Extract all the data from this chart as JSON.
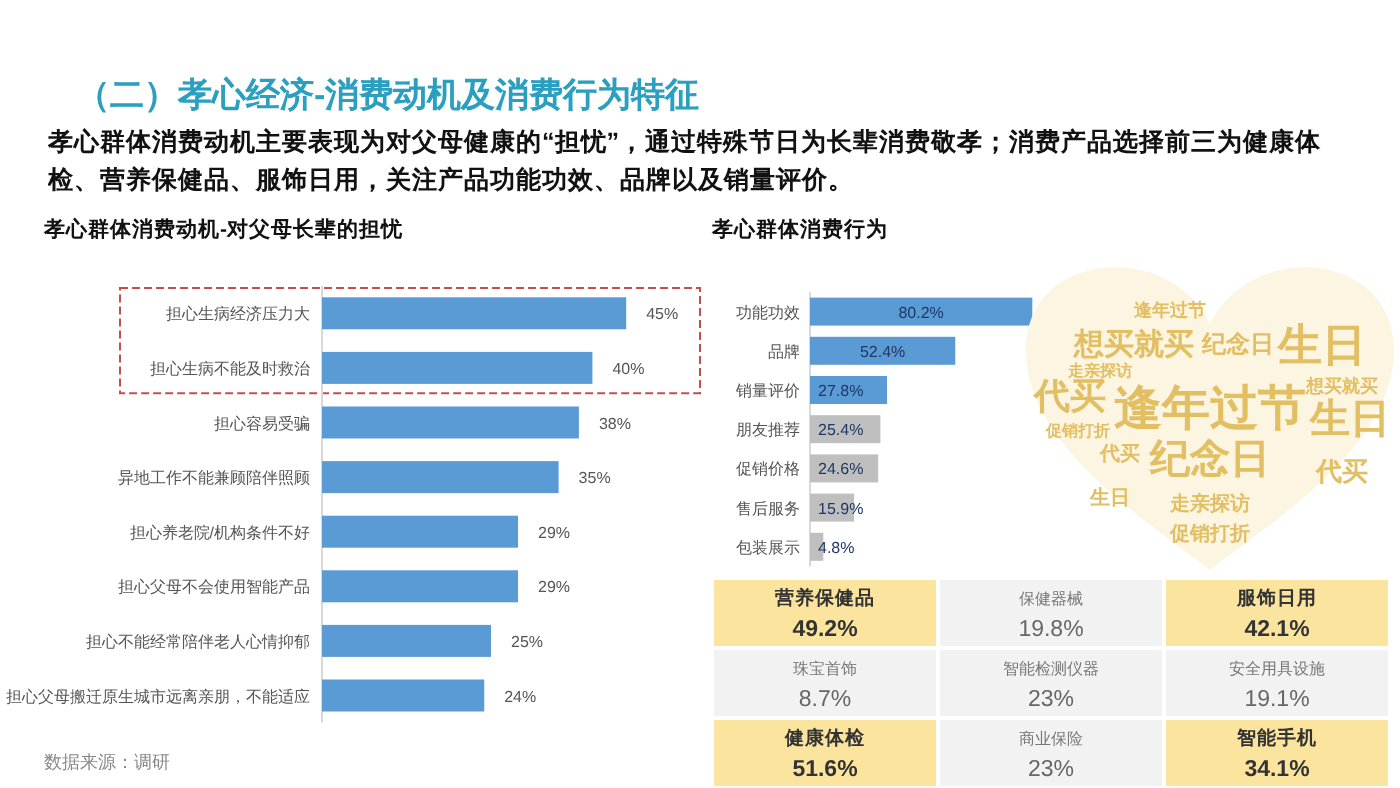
{
  "chart_data": [
    {
      "type": "other",
      "title": "（二）孝心经济-消费动机及消费行为特征",
      "subtitle": "孝心群体消费动机主要表现为对父母健康的“担忧”，通过特殊节日为长辈消费敬孝；消费产品选择前三为健康体检、营养保健品、服饰日用，关注产品功能功效、品牌以及销量评价。"
    },
    {
      "type": "bar",
      "orientation": "horizontal",
      "title": "孝心群体消费动机-对父母长辈的担忧",
      "categories": [
        "担心生病经济压力大",
        "担心生病不能及时救治",
        "担心容易受骗",
        "异地工作不能兼顾陪伴照顾",
        "担心养老院/机构条件不好",
        "担心父母不会使用智能产品",
        "担心不能经常陪伴老人心情抑郁",
        "担心父母搬迁原生城市远离亲朋，不能适应"
      ],
      "values": [
        45,
        40,
        38,
        35,
        29,
        29,
        25,
        24
      ],
      "value_labels": [
        "45%",
        "40%",
        "38%",
        "35%",
        "29%",
        "29%",
        "25%",
        "24%"
      ],
      "color": "#5b9bd5",
      "annotations": [
        "数据来源：调研"
      ]
    },
    {
      "type": "bar",
      "orientation": "horizontal",
      "title": "孝心群体消费行为",
      "categories": [
        "功能功效",
        "品牌",
        "销量评价",
        "朋友推荐",
        "促销价格",
        "售后服务",
        "包装展示"
      ],
      "values": [
        80.2,
        52.4,
        27.8,
        25.4,
        24.6,
        15.9,
        4.8
      ],
      "value_labels": [
        "80.2%",
        "52.4%",
        "27.8%",
        "25.4%",
        "24.6%",
        "15.9%",
        "4.8%"
      ],
      "colors": [
        "#5b9bd5",
        "#5b9bd5",
        "#5b9bd5",
        "#bfbfbf",
        "#bfbfbf",
        "#bfbfbf",
        "#bfbfbf"
      ]
    },
    {
      "type": "other",
      "color": "#e3bf63",
      "annotations": [
        "逢年过节",
        "纪念日",
        "生日",
        "生日",
        "代买",
        "代买",
        "想买就买",
        "纪念日",
        "走亲探访",
        "促销打折",
        "逢年过节",
        "生日",
        "代买",
        "想买就买",
        "走亲探访",
        "促销打折"
      ]
    },
    {
      "type": "other",
      "categories": [
        "营养保健品",
        "保健器械",
        "服饰日用",
        "珠宝首饰",
        "智能检测仪器",
        "安全用具设施",
        "健康体检",
        "商业保险",
        "智能手机"
      ],
      "value_labels": [
        "49.2%",
        "19.8%",
        "42.1%",
        "8.7%",
        "23%",
        "19.1%",
        "51.6%",
        "23%",
        "34.1%"
      ],
      "colors": [
        "#fbe49e",
        "#f2f2f2",
        "#fbe49e",
        "#f2f2f2",
        "#f2f2f2",
        "#f2f2f2",
        "#fbe49e",
        "#f2f2f2",
        "#fbe49e"
      ]
    }
  ]
}
